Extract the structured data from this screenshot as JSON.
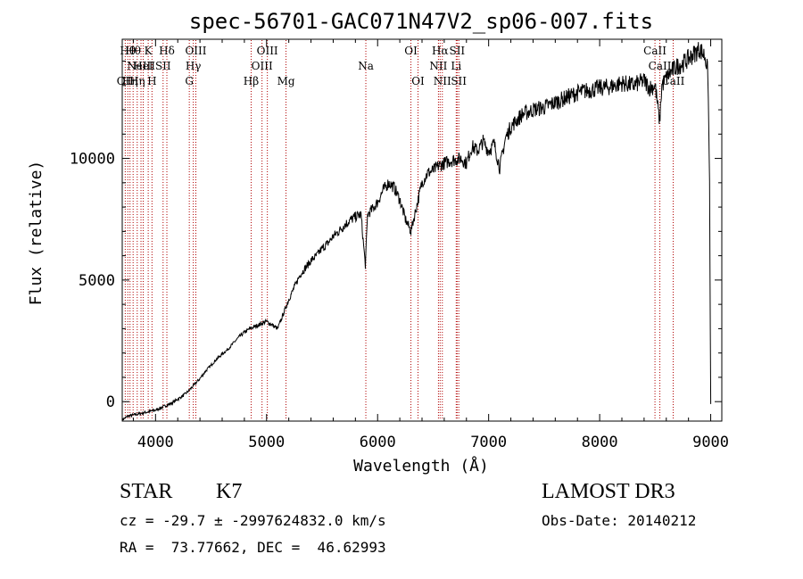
{
  "chart_data": {
    "type": "line",
    "title": "spec-56701-GAC071N47V2_sp06-007.fits",
    "xlabel": "Wavelength (Å)",
    "ylabel": "Flux (relative)",
    "xlim": [
      3700,
      9100
    ],
    "ylim": [
      -800,
      14900
    ],
    "x_ticks": [
      4000,
      5000,
      6000,
      7000,
      8000,
      9000
    ],
    "y_ticks": [
      0,
      5000,
      10000
    ],
    "spectrum": {
      "x": [
        3700,
        3750,
        3800,
        3850,
        3900,
        3950,
        4000,
        4050,
        4100,
        4150,
        4200,
        4250,
        4300,
        4350,
        4400,
        4450,
        4500,
        4550,
        4600,
        4650,
        4700,
        4750,
        4800,
        4850,
        4900,
        4950,
        5000,
        5050,
        5100,
        5150,
        5200,
        5250,
        5300,
        5350,
        5400,
        5450,
        5500,
        5550,
        5600,
        5650,
        5700,
        5750,
        5800,
        5850,
        5890,
        5910,
        5950,
        6000,
        6050,
        6100,
        6150,
        6200,
        6250,
        6300,
        6350,
        6400,
        6450,
        6500,
        6550,
        6600,
        6650,
        6700,
        6750,
        6800,
        6850,
        6900,
        6950,
        7000,
        7050,
        7100,
        7150,
        7200,
        7300,
        7400,
        7500,
        7600,
        7700,
        7800,
        7900,
        8000,
        8100,
        8200,
        8300,
        8400,
        8450,
        8500,
        8540,
        8560,
        8600,
        8650,
        8700,
        8750,
        8800,
        8850,
        8900,
        8950,
        8975,
        8990,
        9000
      ],
      "y": [
        -750,
        -600,
        -550,
        -500,
        -450,
        -400,
        -350,
        -250,
        -150,
        -50,
        100,
        250,
        450,
        700,
        950,
        1250,
        1500,
        1750,
        1950,
        2150,
        2400,
        2650,
        2850,
        3000,
        3100,
        3200,
        3300,
        3150,
        3000,
        3600,
        4200,
        4700,
        5200,
        5500,
        5800,
        6000,
        6300,
        6500,
        6800,
        7000,
        7250,
        7450,
        7600,
        7700,
        5600,
        7700,
        7900,
        8200,
        8700,
        9000,
        8800,
        8300,
        7500,
        7000,
        8000,
        9000,
        9400,
        9500,
        9700,
        9800,
        9900,
        9950,
        10000,
        9800,
        10500,
        10300,
        10700,
        10300,
        10600,
        9600,
        10800,
        11300,
        11800,
        12000,
        12100,
        12300,
        12500,
        12700,
        12800,
        12900,
        12950,
        13100,
        13000,
        13200,
        12900,
        13000,
        11500,
        13000,
        13300,
        13600,
        13800,
        13900,
        14100,
        14300,
        14500,
        14200,
        13500,
        9000,
        -100
      ]
    },
    "line_annotations": [
      {
        "wavelength": 3727,
        "label": "OII",
        "row": 2
      },
      {
        "wavelength": 3750,
        "label": "Hθ",
        "row": 0
      },
      {
        "wavelength": 3770,
        "label": "Hη",
        "row": 2
      },
      {
        "wavelength": 3798,
        "label": "Hθ",
        "row": 0
      },
      {
        "wavelength": 3835,
        "label": "Hη",
        "row": 2
      },
      {
        "wavelength": 3869,
        "label": "NeIII",
        "row": 1
      },
      {
        "wavelength": 3889,
        "label": "HeI",
        "row": 1
      },
      {
        "wavelength": 3934,
        "label": "K",
        "row": 0
      },
      {
        "wavelength": 3968,
        "label": "H",
        "row": 2
      },
      {
        "wavelength": 4068,
        "label": "SII",
        "row": 1
      },
      {
        "wavelength": 4102,
        "label": "Hδ",
        "row": 0
      },
      {
        "wavelength": 4304,
        "label": "G",
        "row": 2
      },
      {
        "wavelength": 4340,
        "label": "Hγ",
        "row": 1
      },
      {
        "wavelength": 4363,
        "label": "OIII",
        "row": 0
      },
      {
        "wavelength": 4861,
        "label": "Hβ",
        "row": 2
      },
      {
        "wavelength": 4959,
        "label": "OIII",
        "row": 1
      },
      {
        "wavelength": 5007,
        "label": "OIII",
        "row": 0
      },
      {
        "wavelength": 5175,
        "label": "Mg",
        "row": 2
      },
      {
        "wavelength": 5894,
        "label": "Na",
        "row": 1
      },
      {
        "wavelength": 6300,
        "label": "OI",
        "row": 0
      },
      {
        "wavelength": 6364,
        "label": "OI",
        "row": 2
      },
      {
        "wavelength": 6548,
        "label": "NII",
        "row": 1
      },
      {
        "wavelength": 6563,
        "label": "Hα",
        "row": 0
      },
      {
        "wavelength": 6583,
        "label": "NII",
        "row": 2
      },
      {
        "wavelength": 6708,
        "label": "Li",
        "row": 1
      },
      {
        "wavelength": 6716,
        "label": "SII",
        "row": 0
      },
      {
        "wavelength": 6731,
        "label": "SII",
        "row": 2
      },
      {
        "wavelength": 8498,
        "label": "CaII",
        "row": 0
      },
      {
        "wavelength": 8542,
        "label": "CaII",
        "row": 1
      },
      {
        "wavelength": 8662,
        "label": "CaII",
        "row": 2
      }
    ]
  },
  "info": {
    "class_label": "STAR",
    "subclass": "K7",
    "survey": "LAMOST DR3",
    "cz_line": "cz = -29.7 ± -2997624832.0 km/s",
    "obs_date": "Obs-Date: 20140212",
    "radec": "RA =  73.77662, DEC =  46.62993"
  },
  "colors": {
    "spectrum": "#000000",
    "annotation_line": "#b00000",
    "background": "#ffffff"
  }
}
